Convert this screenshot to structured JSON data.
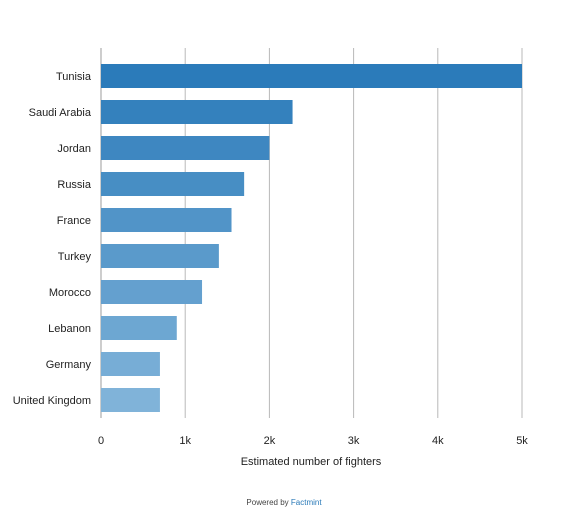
{
  "chart_data": {
    "type": "bar",
    "orientation": "horizontal",
    "categories": [
      "Tunisia",
      "Saudi Arabia",
      "Jordan",
      "Russia",
      "France",
      "Turkey",
      "Morocco",
      "Lebanon",
      "Germany",
      "United Kingdom"
    ],
    "values": [
      5000,
      2275,
      2000,
      1700,
      1550,
      1400,
      1200,
      900,
      700,
      700
    ],
    "title": "",
    "xlabel": "Estimated number of fighters",
    "ylabel": "",
    "xlim": [
      0,
      5000
    ],
    "x_ticks": [
      0,
      1000,
      2000,
      3000,
      4000,
      5000
    ],
    "x_tick_labels": [
      "0",
      "1k",
      "2k",
      "3k",
      "4k",
      "5k"
    ],
    "grid": "vertical",
    "bar_color_dark": "#2b7bba",
    "bar_color_light": "#80b3d9",
    "grid_color": "#b8b8b8"
  },
  "footer": {
    "prefix": "Powered by",
    "brand": "Factmint"
  }
}
